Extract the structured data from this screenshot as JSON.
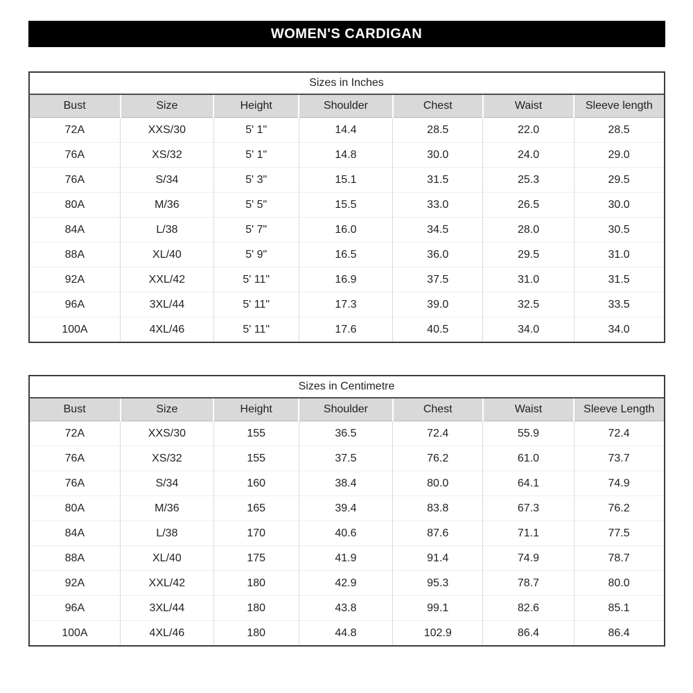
{
  "title": "WOMEN'S CARDIGAN",
  "tables": [
    {
      "caption": "Sizes in Inches",
      "headers": [
        "Bust",
        "Size",
        "Height",
        "Shoulder",
        "Chest",
        "Waist",
        "Sleeve length"
      ],
      "rows": [
        [
          "72A",
          "XXS/30",
          "5' 1\"",
          "14.4",
          "28.5",
          "22.0",
          "28.5"
        ],
        [
          "76A",
          "XS/32",
          "5' 1\"",
          "14.8",
          "30.0",
          "24.0",
          "29.0"
        ],
        [
          "76A",
          "S/34",
          "5' 3\"",
          "15.1",
          "31.5",
          "25.3",
          "29.5"
        ],
        [
          "80A",
          "M/36",
          "5' 5\"",
          "15.5",
          "33.0",
          "26.5",
          "30.0"
        ],
        [
          "84A",
          "L/38",
          "5' 7\"",
          "16.0",
          "34.5",
          "28.0",
          "30.5"
        ],
        [
          "88A",
          "XL/40",
          "5' 9\"",
          "16.5",
          "36.0",
          "29.5",
          "31.0"
        ],
        [
          "92A",
          "XXL/42",
          "5' 11\"",
          "16.9",
          "37.5",
          "31.0",
          "31.5"
        ],
        [
          "96A",
          "3XL/44",
          "5' 11\"",
          "17.3",
          "39.0",
          "32.5",
          "33.5"
        ],
        [
          "100A",
          "4XL/46",
          "5' 11\"",
          "17.6",
          "40.5",
          "34.0",
          "34.0"
        ]
      ]
    },
    {
      "caption": "Sizes in Centimetre",
      "headers": [
        "Bust",
        "Size",
        "Height",
        "Shoulder",
        "Chest",
        "Waist",
        "Sleeve Length"
      ],
      "rows": [
        [
          "72A",
          "XXS/30",
          "155",
          "36.5",
          "72.4",
          "55.9",
          "72.4"
        ],
        [
          "76A",
          "XS/32",
          "155",
          "37.5",
          "76.2",
          "61.0",
          "73.7"
        ],
        [
          "76A",
          "S/34",
          "160",
          "38.4",
          "80.0",
          "64.1",
          "74.9"
        ],
        [
          "80A",
          "M/36",
          "165",
          "39.4",
          "83.8",
          "67.3",
          "76.2"
        ],
        [
          "84A",
          "L/38",
          "170",
          "40.6",
          "87.6",
          "71.1",
          "77.5"
        ],
        [
          "88A",
          "XL/40",
          "175",
          "41.9",
          "91.4",
          "74.9",
          "78.7"
        ],
        [
          "92A",
          "XXL/42",
          "180",
          "42.9",
          "95.3",
          "78.7",
          "80.0"
        ],
        [
          "96A",
          "3XL/44",
          "180",
          "43.8",
          "99.1",
          "82.6",
          "85.1"
        ],
        [
          "100A",
          "4XL/46",
          "180",
          "44.8",
          "102.9",
          "86.4",
          "86.4"
        ]
      ]
    }
  ],
  "colors": {
    "title_bar_bg": "#000000",
    "title_bar_text": "#ffffff",
    "header_row_bg": "#d9d9d9",
    "table_outer_border": "#3a3a3a",
    "caption_divider": "#4d4d4d",
    "column_divider": "#d9d9d9",
    "row_divider": "#ededed",
    "text": "#1f1f1f",
    "background": "#ffffff"
  }
}
